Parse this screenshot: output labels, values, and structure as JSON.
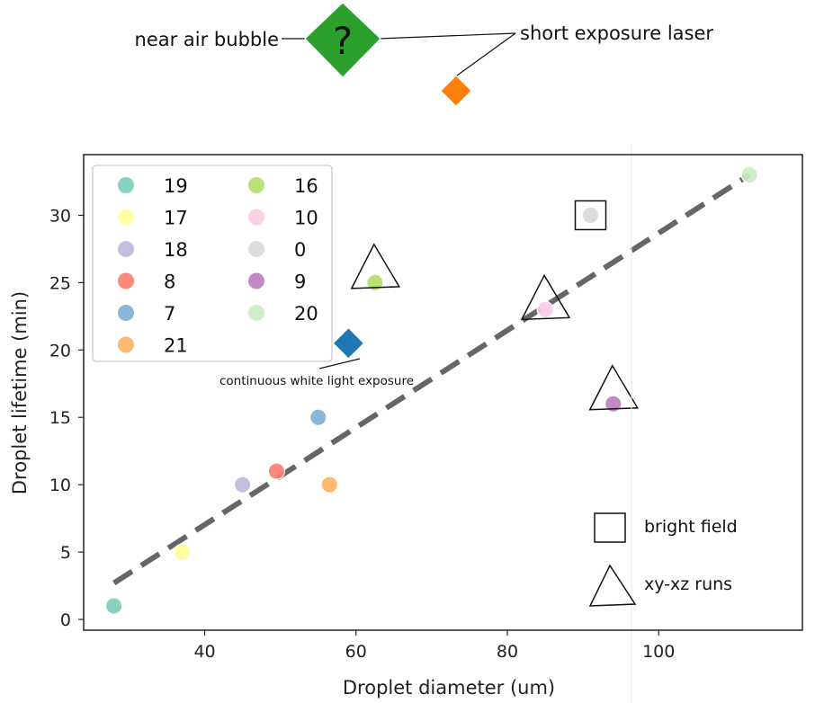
{
  "chart_data": {
    "type": "scatter",
    "xlabel": "Droplet diameter (um)",
    "ylabel": "Droplet lifetime (min)",
    "xlim": [
      24,
      119
    ],
    "ylim": [
      -0.8,
      34.5
    ],
    "xticks": [
      40,
      60,
      80,
      100
    ],
    "yticks": [
      0,
      5,
      10,
      15,
      20,
      25,
      30
    ],
    "grid": false,
    "legend": {
      "placement": "top-left",
      "columns": 2,
      "entries": [
        {
          "label": "19",
          "color": "#7fcdbb"
        },
        {
          "label": "17",
          "color": "#ffff99"
        },
        {
          "label": "18",
          "color": "#bebada"
        },
        {
          "label": "8",
          "color": "#fb8072"
        },
        {
          "label": "7",
          "color": "#80b1d3"
        },
        {
          "label": "21",
          "color": "#fdb462"
        },
        {
          "label": "16",
          "color": "#b3de69"
        },
        {
          "label": "10",
          "color": "#fccde5"
        },
        {
          "label": "0",
          "color": "#d9d9d9"
        },
        {
          "label": "9",
          "color": "#bc80bd"
        },
        {
          "label": "20",
          "color": "#ccebc5"
        }
      ]
    },
    "series": [
      {
        "label": "19",
        "color": "#7fcdbb",
        "points": [
          [
            28,
            1
          ]
        ]
      },
      {
        "label": "17",
        "color": "#ffff99",
        "points": [
          [
            37,
            5
          ]
        ]
      },
      {
        "label": "18",
        "color": "#bebada",
        "points": [
          [
            45,
            10
          ]
        ]
      },
      {
        "label": "8",
        "color": "#fb8072",
        "points": [
          [
            49.5,
            11
          ]
        ]
      },
      {
        "label": "7",
        "color": "#80b1d3",
        "points": [
          [
            55,
            15
          ]
        ]
      },
      {
        "label": "21",
        "color": "#fdb462",
        "points": [
          [
            56.5,
            10
          ]
        ]
      },
      {
        "label": "16",
        "color": "#b3de69",
        "points": [
          [
            62.5,
            25
          ]
        ]
      },
      {
        "label": "10",
        "color": "#fccde5",
        "points": [
          [
            85,
            23
          ]
        ]
      },
      {
        "label": "0",
        "color": "#d9d9d9",
        "points": [
          [
            91,
            30
          ]
        ]
      },
      {
        "label": "9",
        "color": "#bc80bd",
        "points": [
          [
            94,
            16
          ]
        ]
      },
      {
        "label": "20",
        "color": "#ccebc5",
        "points": [
          [
            112,
            33
          ]
        ]
      }
    ],
    "fit_line": {
      "color": "#666666",
      "points": [
        [
          28,
          2.7
        ],
        [
          112,
          33
        ]
      ]
    },
    "markers_square": [
      [
        91,
        30
      ]
    ],
    "markers_triangle": [
      [
        62.5,
        25.5
      ],
      [
        85,
        23.2
      ],
      [
        94,
        16.5
      ]
    ],
    "blue_diamond": {
      "x": 59,
      "y": 20.5,
      "color": "#1f77b4",
      "label": "continuous white light exposure"
    },
    "annotations": {
      "near_air_bubble": "near air bubble",
      "question_mark": "?",
      "short_exposure_laser": "short exposure laser",
      "bright_field": "bright field",
      "xy_xz_runs": "xy-xz runs"
    },
    "diamond_colors": {
      "green": "#2ca02c",
      "orange": "#ff7f0e"
    }
  }
}
